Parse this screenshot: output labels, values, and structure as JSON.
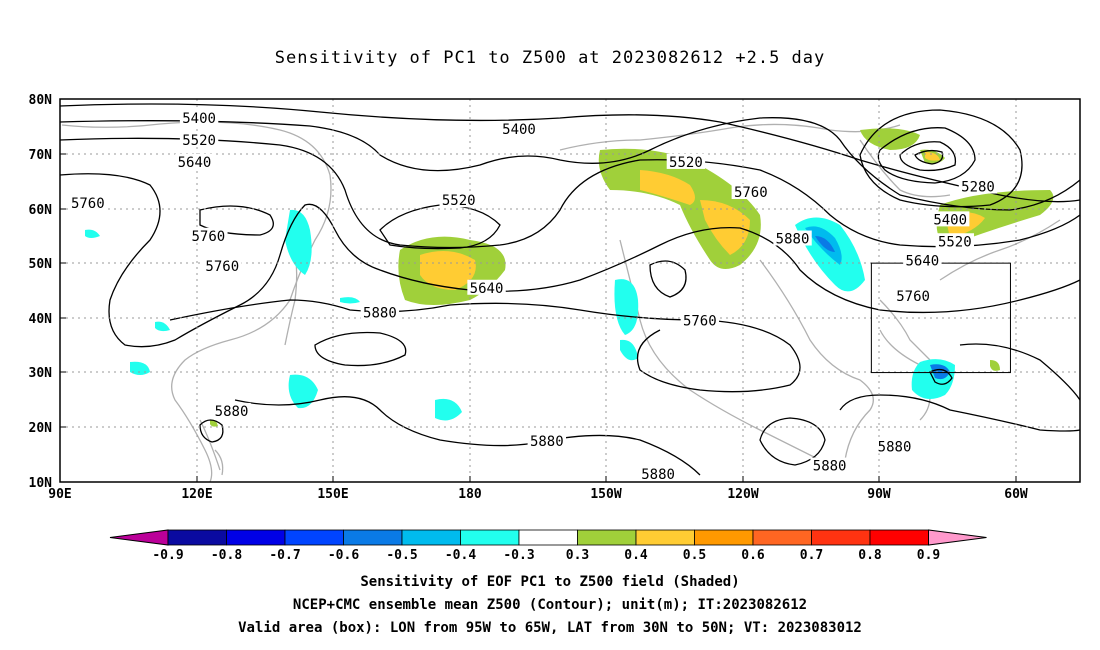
{
  "title": "Sensitivity of PC1 to Z500 at 2023082612 +2.5 day",
  "map": {
    "lat_labels": [
      "80N",
      "70N",
      "60N",
      "50N",
      "40N",
      "30N",
      "20N",
      "10N"
    ],
    "lon_labels": [
      "90E",
      "120E",
      "150E",
      "180",
      "150W",
      "120W",
      "90W",
      "60W"
    ],
    "contour_labels": [
      {
        "text": "5400",
        "lon": 120,
        "lat": 76.5
      },
      {
        "text": "5520",
        "lon": 120,
        "lat": 72.5
      },
      {
        "text": "5640",
        "lon": 119,
        "lat": 68.5
      },
      {
        "text": "5400",
        "lon": -171,
        "lat": 74.5
      },
      {
        "text": "5520",
        "lon": -135,
        "lat": 68.5
      },
      {
        "text": "5760",
        "lon": -121,
        "lat": 63
      },
      {
        "text": "5880",
        "lon": -112,
        "lat": 54.5
      },
      {
        "text": "5520",
        "lon": 176,
        "lat": 61.5
      },
      {
        "text": "5640",
        "lon": -178,
        "lat": 45.5
      },
      {
        "text": "5760",
        "lon": -132,
        "lat": 39.5
      },
      {
        "text": "5760",
        "lon": 96,
        "lat": 61
      },
      {
        "text": "5760",
        "lon": 122,
        "lat": 55
      },
      {
        "text": "5760",
        "lon": 125,
        "lat": 49.5
      },
      {
        "text": "5880",
        "lon": 159,
        "lat": 41
      },
      {
        "text": "5880",
        "lon": 127,
        "lat": 23
      },
      {
        "text": "5880",
        "lon": -165,
        "lat": 17.5
      },
      {
        "text": "5880",
        "lon": -141,
        "lat": 11.5
      },
      {
        "text": "5880",
        "lon": -104,
        "lat": 13
      },
      {
        "text": "5880",
        "lon": -90,
        "lat": 16.5
      },
      {
        "text": "5280",
        "lon": -72,
        "lat": 64
      },
      {
        "text": "5400",
        "lon": -78,
        "lat": 58
      },
      {
        "text": "5520",
        "lon": -77,
        "lat": 54
      },
      {
        "text": "5640",
        "lon": -84,
        "lat": 50.5
      },
      {
        "text": "5760",
        "lon": -86,
        "lat": 44
      }
    ],
    "valid_box": {
      "lon_from": -95,
      "lon_to": -65,
      "lat_from": 30,
      "lat_to": 50
    }
  },
  "colorbar": {
    "labels": [
      "-0.9",
      "-0.8",
      "-0.7",
      "-0.6",
      "-0.5",
      "-0.4",
      "-0.3",
      "0.3",
      "0.4",
      "0.5",
      "0.6",
      "0.7",
      "0.8",
      "0.9"
    ],
    "colors": [
      "#bb0099",
      "#0a0aa0",
      "#0000e6",
      "#0044ff",
      "#0a7ae6",
      "#00bbee",
      "#22ffee",
      "#ffffff",
      "#a0d03a",
      "#ffcc33",
      "#ff9900",
      "#ff6622",
      "#ff3311",
      "#ff0000",
      "#ff99cc"
    ]
  },
  "caption": {
    "line1": "Sensitivity of EOF PC1 to Z500 field (Shaded)",
    "line2": "NCEP+CMC ensemble mean Z500 (Contour); unit(m); IT:2023082612",
    "line3": "Valid area (box): LON from 95W to 65W, LAT from 30N to 50N; VT: 2023083012"
  }
}
